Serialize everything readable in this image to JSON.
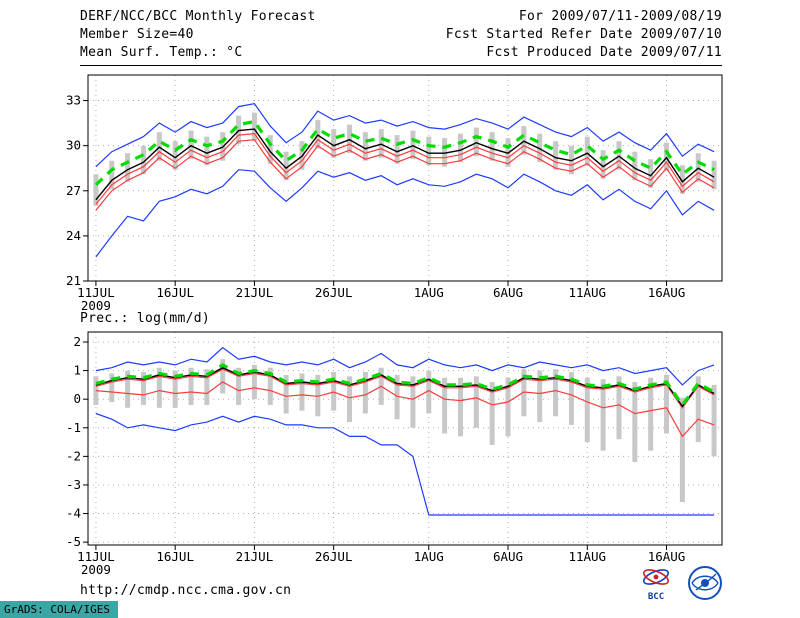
{
  "header": {
    "title": "DERF/NCC/BCC Monthly Forecast",
    "period": "For 2009/07/11-2009/08/19",
    "member_size": "Member Size=40",
    "fcst_started": "Fcst Started Refer Date 2009/07/10",
    "temp_label": "Mean Surf. Temp.: °C",
    "fcst_produced": "Fcst Produced Date 2009/07/11",
    "precip_label": "Prec.: log(mm/d)"
  },
  "footer": {
    "url": "http://cmdp.ncc.cma.gov.cn",
    "credit": "GrADS: COLA/IGES",
    "logos": {
      "bcc": "BCC",
      "ncc": "NCC"
    }
  },
  "chart_data": [
    {
      "type": "line",
      "title": "Mean Surf. Temp.: °C",
      "ylabel": "°C",
      "n_days": 40,
      "x_start": "11JUL2009",
      "x_tick_labels": [
        "11JUL",
        "16JUL",
        "21JUL",
        "26JUL",
        "1AUG",
        "6AUG",
        "11AUG",
        "16AUG"
      ],
      "x_tick_days": [
        0,
        5,
        10,
        15,
        21,
        26,
        31,
        36
      ],
      "x_sub_label": "2009",
      "ylim": [
        21,
        34.7
      ],
      "yticks": [
        33,
        30,
        27,
        24,
        21
      ],
      "grid": true,
      "grid_color": "#b0b0b0",
      "band": {
        "name": "ensemble-spread-bar",
        "color": "#c8c8c8",
        "hi": [
          28.1,
          29.0,
          29.5,
          30.0,
          30.9,
          30.3,
          31.0,
          30.6,
          30.9,
          32.0,
          32.2,
          30.7,
          29.6,
          30.3,
          31.7,
          31.1,
          31.4,
          30.9,
          31.1,
          30.7,
          31.0,
          30.6,
          30.5,
          30.8,
          31.2,
          30.9,
          30.5,
          31.3,
          30.8,
          30.3,
          30.0,
          30.6,
          29.7,
          30.3,
          29.6,
          29.1,
          30.2,
          28.7,
          29.5,
          29.0
        ],
        "lo": [
          26.0,
          27.1,
          27.6,
          28.1,
          29.0,
          28.4,
          29.1,
          28.7,
          29.0,
          30.1,
          30.3,
          28.8,
          27.7,
          28.4,
          29.8,
          29.2,
          29.5,
          29.0,
          29.2,
          28.8,
          29.1,
          28.7,
          28.6,
          28.9,
          29.3,
          29.0,
          28.6,
          29.4,
          28.9,
          28.4,
          28.1,
          28.7,
          27.8,
          28.4,
          27.7,
          27.2,
          28.3,
          26.8,
          27.6,
          27.1
        ]
      },
      "series": [
        {
          "name": "min-envelope",
          "color": "#1e3cff",
          "width": 1.2,
          "dash": null,
          "values": [
            22.6,
            24.0,
            25.3,
            25.0,
            26.3,
            26.6,
            27.1,
            26.8,
            27.3,
            28.4,
            28.3,
            27.2,
            26.3,
            27.2,
            28.3,
            27.9,
            28.2,
            27.7,
            28.0,
            27.4,
            27.8,
            27.4,
            27.3,
            27.6,
            28.1,
            27.8,
            27.2,
            28.1,
            27.6,
            27.0,
            26.7,
            27.4,
            26.4,
            27.1,
            26.3,
            25.8,
            27.0,
            25.4,
            26.3,
            25.7
          ]
        },
        {
          "name": "max-envelope",
          "color": "#1e3cff",
          "width": 1.2,
          "dash": null,
          "values": [
            28.6,
            29.6,
            30.1,
            30.6,
            31.5,
            30.9,
            31.6,
            31.2,
            31.5,
            32.6,
            32.8,
            31.3,
            30.2,
            30.9,
            32.3,
            31.7,
            32.0,
            31.5,
            31.7,
            31.3,
            31.6,
            31.2,
            31.1,
            31.4,
            31.8,
            31.5,
            31.1,
            31.9,
            31.4,
            30.9,
            30.6,
            31.2,
            30.3,
            30.9,
            30.2,
            29.7,
            30.8,
            29.3,
            30.1,
            29.6
          ]
        },
        {
          "name": "red-line-lower",
          "color": "#fa3c3c",
          "width": 1.2,
          "dash": null,
          "values": [
            25.7,
            27.0,
            27.7,
            28.2,
            29.2,
            28.5,
            29.3,
            28.8,
            29.2,
            30.3,
            30.4,
            28.9,
            27.8,
            28.6,
            30.0,
            29.3,
            29.7,
            29.1,
            29.4,
            28.9,
            29.3,
            28.8,
            28.8,
            29.0,
            29.5,
            29.1,
            28.8,
            29.6,
            29.1,
            28.5,
            28.3,
            28.8,
            27.9,
            28.6,
            27.8,
            27.3,
            28.5,
            26.9,
            27.8,
            27.2
          ]
        },
        {
          "name": "red-line-upper",
          "color": "#fa3c3c",
          "width": 1.2,
          "dash": null,
          "values": [
            26.1,
            27.4,
            28.1,
            28.6,
            29.6,
            28.9,
            29.7,
            29.2,
            29.6,
            30.7,
            30.8,
            29.3,
            28.2,
            29.0,
            30.4,
            29.7,
            30.1,
            29.5,
            29.8,
            29.3,
            29.7,
            29.2,
            29.2,
            29.4,
            29.9,
            29.5,
            29.2,
            30.0,
            29.5,
            28.9,
            28.7,
            29.2,
            28.3,
            29.0,
            28.2,
            27.7,
            28.9,
            27.3,
            28.2,
            27.6
          ]
        },
        {
          "name": "black-line",
          "color": "#000000",
          "width": 1.4,
          "dash": null,
          "values": [
            26.4,
            27.7,
            28.4,
            28.9,
            29.9,
            29.2,
            30.0,
            29.5,
            29.9,
            31.0,
            31.1,
            29.6,
            28.5,
            29.3,
            30.7,
            30.0,
            30.4,
            29.8,
            30.1,
            29.6,
            30.0,
            29.5,
            29.5,
            29.7,
            30.2,
            29.8,
            29.5,
            30.3,
            29.8,
            29.2,
            29.0,
            29.5,
            28.6,
            29.3,
            28.5,
            28.0,
            29.2,
            27.6,
            28.5,
            27.9
          ]
        },
        {
          "name": "ensemble-mean",
          "color": "#00dc00",
          "width": 3.2,
          "dash": "9,7",
          "values": [
            27.4,
            28.4,
            28.9,
            29.4,
            30.3,
            29.7,
            30.4,
            30.0,
            30.3,
            31.4,
            31.6,
            30.1,
            29.0,
            29.7,
            31.1,
            30.5,
            30.8,
            30.3,
            30.5,
            30.1,
            30.4,
            30.0,
            29.9,
            30.2,
            30.6,
            30.3,
            29.9,
            30.7,
            30.2,
            29.7,
            29.4,
            30.0,
            29.1,
            29.7,
            29.0,
            28.5,
            29.6,
            28.1,
            28.9,
            28.4
          ]
        }
      ]
    },
    {
      "type": "line",
      "title": "Prec.: log(mm/d)",
      "ylabel": "log(mm/d)",
      "n_days": 40,
      "x_start": "11JUL2009",
      "x_tick_labels": [
        "11JUL",
        "16JUL",
        "21JUL",
        "26JUL",
        "1AUG",
        "6AUG",
        "11AUG",
        "16AUG"
      ],
      "x_tick_days": [
        0,
        5,
        10,
        15,
        21,
        26,
        31,
        36
      ],
      "x_sub_label": "2009",
      "ylim": [
        -5.1,
        2.35
      ],
      "yticks": [
        2,
        1,
        0,
        -1,
        -2,
        -3,
        -4,
        -5
      ],
      "grid": true,
      "grid_color": "#b0b0b0",
      "band": {
        "name": "ensemble-spread-bar",
        "color": "#c8c8c8",
        "hi": [
          0.8,
          0.9,
          1.0,
          0.95,
          1.1,
          1.0,
          1.1,
          1.05,
          1.4,
          1.1,
          1.2,
          1.1,
          0.85,
          0.9,
          0.85,
          0.95,
          0.8,
          0.95,
          1.1,
          0.85,
          0.8,
          1.0,
          0.75,
          0.75,
          0.8,
          0.6,
          0.75,
          1.05,
          1.0,
          1.05,
          0.95,
          0.75,
          0.7,
          0.8,
          0.6,
          0.75,
          0.85,
          0.05,
          0.8,
          0.5
        ],
        "lo": [
          -0.2,
          -0.1,
          -0.3,
          -0.2,
          -0.3,
          -0.3,
          -0.2,
          -0.2,
          0.2,
          -0.2,
          0.0,
          -0.2,
          -0.5,
          -0.4,
          -0.6,
          -0.4,
          -0.8,
          -0.5,
          -0.2,
          -0.7,
          -1.0,
          -0.5,
          -1.2,
          -1.3,
          -1.0,
          -1.6,
          -1.3,
          -0.6,
          -0.8,
          -0.6,
          -0.9,
          -1.5,
          -1.8,
          -1.4,
          -2.2,
          -1.8,
          -1.2,
          -3.6,
          -1.5,
          -2.0
        ]
      },
      "series": [
        {
          "name": "min-envelope",
          "color": "#1e3cff",
          "width": 1.2,
          "dash": null,
          "values": [
            -0.5,
            -0.7,
            -1.0,
            -0.9,
            -1.0,
            -1.1,
            -0.9,
            -0.8,
            -0.6,
            -0.8,
            -0.6,
            -0.7,
            -0.9,
            -0.9,
            -1.0,
            -1.0,
            -1.3,
            -1.3,
            -1.6,
            -1.6,
            -2.0,
            -4.05,
            -4.05,
            -4.05,
            -4.05,
            -4.05,
            -4.05,
            -4.05,
            -4.05,
            -4.05,
            -4.05,
            -4.05,
            -4.05,
            -4.05,
            -4.05,
            -4.05,
            -4.05,
            -4.05,
            -4.05,
            -4.05
          ]
        },
        {
          "name": "max-envelope",
          "color": "#1e3cff",
          "width": 1.2,
          "dash": null,
          "values": [
            1.0,
            1.1,
            1.3,
            1.2,
            1.3,
            1.2,
            1.4,
            1.3,
            1.8,
            1.4,
            1.5,
            1.3,
            1.2,
            1.3,
            1.2,
            1.4,
            1.1,
            1.3,
            1.6,
            1.2,
            1.1,
            1.4,
            1.2,
            1.1,
            1.2,
            1.0,
            1.2,
            1.1,
            1.3,
            1.2,
            1.1,
            1.2,
            1.0,
            1.1,
            0.9,
            1.0,
            1.1,
            0.5,
            1.0,
            1.2
          ]
        },
        {
          "name": "red-line-lower",
          "color": "#fa3c3c",
          "width": 1.2,
          "dash": null,
          "values": [
            0.3,
            0.25,
            0.2,
            0.15,
            0.3,
            0.2,
            0.25,
            0.2,
            0.6,
            0.3,
            0.4,
            0.3,
            0.1,
            0.15,
            0.1,
            0.25,
            0.05,
            0.15,
            0.45,
            0.1,
            0.0,
            0.3,
            0.0,
            -0.05,
            0.05,
            -0.2,
            -0.1,
            0.25,
            0.2,
            0.3,
            0.15,
            -0.1,
            -0.3,
            -0.2,
            -0.5,
            -0.4,
            -0.3,
            -1.3,
            -0.7,
            -0.9
          ]
        },
        {
          "name": "red-line-upper",
          "color": "#fa3c3c",
          "width": 1.2,
          "dash": null,
          "values": [
            0.45,
            0.6,
            0.7,
            0.65,
            0.8,
            0.7,
            0.8,
            0.75,
            1.05,
            0.8,
            0.9,
            0.8,
            0.5,
            0.55,
            0.5,
            0.6,
            0.45,
            0.6,
            0.8,
            0.5,
            0.45,
            0.65,
            0.4,
            0.4,
            0.45,
            0.25,
            0.4,
            0.7,
            0.65,
            0.7,
            0.6,
            0.4,
            0.35,
            0.45,
            0.25,
            0.4,
            0.5,
            -0.3,
            0.45,
            0.15
          ]
        },
        {
          "name": "black-line",
          "color": "#000000",
          "width": 1.4,
          "dash": null,
          "values": [
            0.5,
            0.65,
            0.75,
            0.7,
            0.85,
            0.75,
            0.85,
            0.8,
            1.1,
            0.85,
            0.95,
            0.85,
            0.55,
            0.6,
            0.55,
            0.65,
            0.5,
            0.65,
            0.85,
            0.55,
            0.5,
            0.7,
            0.45,
            0.45,
            0.5,
            0.3,
            0.45,
            0.75,
            0.7,
            0.75,
            0.65,
            0.45,
            0.4,
            0.5,
            0.3,
            0.45,
            0.55,
            -0.25,
            0.5,
            0.2
          ]
        },
        {
          "name": "ensemble-mean",
          "color": "#00dc00",
          "width": 3.2,
          "dash": "9,7",
          "values": [
            0.55,
            0.7,
            0.8,
            0.75,
            0.9,
            0.8,
            0.9,
            0.85,
            1.2,
            0.9,
            1.0,
            0.9,
            0.6,
            0.65,
            0.6,
            0.7,
            0.55,
            0.7,
            0.9,
            0.6,
            0.55,
            0.75,
            0.5,
            0.5,
            0.55,
            0.35,
            0.5,
            0.8,
            0.75,
            0.8,
            0.7,
            0.5,
            0.45,
            0.55,
            0.35,
            0.5,
            0.6,
            -0.2,
            0.55,
            0.25
          ]
        }
      ]
    }
  ]
}
